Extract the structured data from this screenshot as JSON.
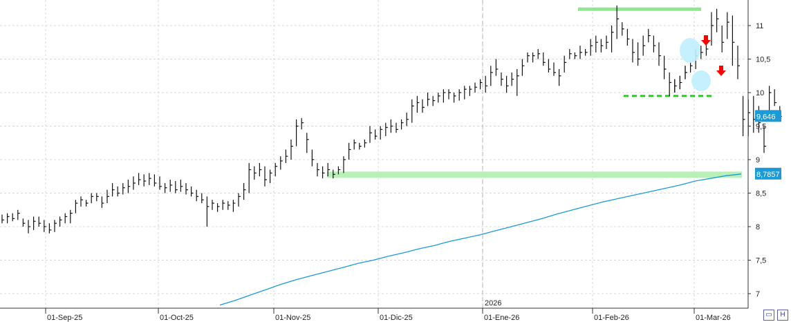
{
  "chart_data": {
    "type": "bar",
    "style": "ohlc",
    "x_ticks": [
      "01-Sep-25",
      "01-Oct-25",
      "01-Nov-25",
      "01-Dic-25",
      "01-Ene-26",
      "01-Feb-26",
      "01-Mar-26"
    ],
    "year_marker": "2026",
    "y_ticks": [
      "7",
      "7,5",
      "8",
      "8,5",
      "9",
      "9,5",
      "10",
      "10,5",
      "11"
    ],
    "ylim": [
      6.75,
      11.35
    ],
    "grid": true,
    "last_price_label": "9,646",
    "ma_label": "8,7857",
    "colors": {
      "price": "#111111",
      "moving_average": "#1a9ad6",
      "support_zone": "#b8f0b8",
      "resistance_line": "#8fe88f",
      "dashed_support": "#22cc22",
      "highlight_circle": "#bfefff",
      "signal_arrow": "#ff0000",
      "price_tag": "#1a9ad6"
    },
    "series": [
      {
        "values": [
          [
            8.18,
            8.05,
            8.1
          ],
          [
            8.2,
            8.05,
            8.15
          ],
          [
            8.2,
            8.08,
            8.12
          ],
          [
            8.25,
            8.1,
            8.2
          ],
          [
            8.12,
            8.0,
            8.05
          ],
          [
            8.1,
            7.9,
            8.0
          ],
          [
            8.15,
            7.95,
            8.08
          ],
          [
            8.15,
            8.0,
            8.05
          ],
          [
            8.1,
            7.92,
            8.0
          ],
          [
            8.05,
            7.9,
            7.95
          ],
          [
            8.1,
            7.92,
            8.05
          ],
          [
            8.15,
            8.0,
            8.1
          ],
          [
            8.2,
            8.05,
            8.15
          ],
          [
            8.25,
            8.05,
            8.2
          ],
          [
            8.4,
            8.2,
            8.35
          ],
          [
            8.45,
            8.3,
            8.4
          ],
          [
            8.4,
            8.3,
            8.35
          ],
          [
            8.5,
            8.35,
            8.45
          ],
          [
            8.5,
            8.38,
            8.45
          ],
          [
            8.45,
            8.28,
            8.35
          ],
          [
            8.55,
            8.35,
            8.45
          ],
          [
            8.65,
            8.45,
            8.55
          ],
          [
            8.6,
            8.45,
            8.5
          ],
          [
            8.65,
            8.48,
            8.58
          ],
          [
            8.7,
            8.5,
            8.6
          ],
          [
            8.75,
            8.55,
            8.65
          ],
          [
            8.8,
            8.62,
            8.7
          ],
          [
            8.78,
            8.6,
            8.68
          ],
          [
            8.8,
            8.62,
            8.72
          ],
          [
            8.78,
            8.6,
            8.65
          ],
          [
            8.75,
            8.55,
            8.6
          ],
          [
            8.65,
            8.5,
            8.58
          ],
          [
            8.7,
            8.52,
            8.62
          ],
          [
            8.68,
            8.5,
            8.55
          ],
          [
            8.7,
            8.52,
            8.6
          ],
          [
            8.65,
            8.48,
            8.55
          ],
          [
            8.6,
            8.45,
            8.5
          ],
          [
            8.55,
            8.38,
            8.45
          ],
          [
            8.5,
            8.35,
            8.4
          ],
          [
            8.45,
            8.0,
            8.3
          ],
          [
            8.4,
            8.25,
            8.35
          ],
          [
            8.35,
            8.22,
            8.3
          ],
          [
            8.4,
            8.25,
            8.35
          ],
          [
            8.38,
            8.25,
            8.32
          ],
          [
            8.4,
            8.22,
            8.35
          ],
          [
            8.5,
            8.3,
            8.45
          ],
          [
            8.65,
            8.4,
            8.55
          ],
          [
            8.95,
            8.5,
            8.85
          ],
          [
            8.9,
            8.7,
            8.8
          ],
          [
            8.95,
            8.75,
            8.85
          ],
          [
            8.9,
            8.6,
            8.7
          ],
          [
            8.85,
            8.65,
            8.8
          ],
          [
            8.95,
            8.75,
            8.9
          ],
          [
            9.05,
            8.85,
            8.98
          ],
          [
            9.15,
            8.95,
            9.05
          ],
          [
            9.3,
            9.0,
            9.2
          ],
          [
            9.6,
            9.2,
            9.5
          ],
          [
            9.62,
            9.45,
            9.55
          ],
          [
            9.4,
            9.1,
            9.3
          ],
          [
            9.15,
            8.9,
            9.0
          ],
          [
            8.95,
            8.75,
            8.85
          ],
          [
            8.9,
            8.72,
            8.8
          ],
          [
            8.95,
            8.75,
            8.85
          ],
          [
            8.85,
            8.72,
            8.78
          ],
          [
            8.9,
            8.78,
            8.85
          ],
          [
            9.05,
            8.8,
            9.0
          ],
          [
            9.25,
            9.0,
            9.15
          ],
          [
            9.3,
            9.15,
            9.25
          ],
          [
            9.25,
            9.15,
            9.2
          ],
          [
            9.3,
            9.18,
            9.25
          ],
          [
            9.5,
            9.25,
            9.4
          ],
          [
            9.45,
            9.3,
            9.35
          ],
          [
            9.5,
            9.3,
            9.45
          ],
          [
            9.55,
            9.35,
            9.48
          ],
          [
            9.6,
            9.4,
            9.5
          ],
          [
            9.55,
            9.4,
            9.45
          ],
          [
            9.6,
            9.45,
            9.55
          ],
          [
            9.7,
            9.5,
            9.6
          ],
          [
            9.9,
            9.55,
            9.8
          ],
          [
            9.95,
            9.7,
            9.85
          ],
          [
            9.9,
            9.7,
            9.78
          ],
          [
            10.0,
            9.8,
            9.9
          ],
          [
            9.95,
            9.8,
            9.88
          ],
          [
            10.0,
            9.85,
            9.95
          ],
          [
            10.05,
            9.85,
            10.0
          ],
          [
            10.05,
            9.9,
            10.0
          ],
          [
            10.0,
            9.85,
            9.95
          ],
          [
            10.05,
            9.88,
            10.0
          ],
          [
            10.1,
            9.9,
            10.05
          ],
          [
            10.1,
            9.95,
            10.05
          ],
          [
            10.15,
            10.0,
            10.08
          ],
          [
            10.2,
            10.05,
            10.15
          ],
          [
            10.25,
            10.0,
            10.1
          ],
          [
            10.4,
            10.1,
            10.3
          ],
          [
            10.5,
            10.25,
            10.35
          ],
          [
            10.3,
            10.1,
            10.2
          ],
          [
            10.25,
            10.0,
            10.1
          ],
          [
            10.3,
            10.1,
            10.2
          ],
          [
            10.35,
            9.95,
            10.25
          ],
          [
            10.5,
            10.25,
            10.4
          ],
          [
            10.6,
            10.45,
            10.55
          ],
          [
            10.6,
            10.45,
            10.55
          ],
          [
            10.65,
            10.5,
            10.58
          ],
          [
            10.6,
            10.4,
            10.45
          ],
          [
            10.5,
            10.3,
            10.35
          ],
          [
            10.45,
            10.25,
            10.3
          ],
          [
            10.35,
            10.1,
            10.25
          ],
          [
            10.55,
            10.3,
            10.45
          ],
          [
            10.65,
            10.5,
            10.58
          ],
          [
            10.6,
            10.5,
            10.55
          ],
          [
            10.7,
            10.5,
            10.6
          ],
          [
            10.65,
            10.55,
            10.6
          ],
          [
            10.8,
            10.55,
            10.7
          ],
          [
            10.85,
            10.6,
            10.75
          ],
          [
            10.8,
            10.6,
            10.7
          ],
          [
            10.85,
            10.65,
            10.75
          ],
          [
            11.0,
            10.6,
            10.9
          ],
          [
            11.3,
            10.8,
            11.1
          ],
          [
            11.05,
            10.85,
            10.95
          ],
          [
            10.95,
            10.7,
            10.8
          ],
          [
            10.8,
            10.45,
            10.6
          ],
          [
            10.75,
            10.4,
            10.5
          ],
          [
            10.85,
            10.55,
            10.7
          ],
          [
            10.95,
            10.75,
            10.85
          ],
          [
            10.85,
            10.6,
            10.7
          ],
          [
            10.75,
            10.4,
            10.55
          ],
          [
            10.55,
            10.2,
            10.35
          ],
          [
            10.3,
            9.95,
            10.15
          ],
          [
            10.2,
            10.0,
            10.1
          ],
          [
            10.25,
            10.05,
            10.15
          ],
          [
            10.4,
            10.2,
            10.3
          ],
          [
            10.45,
            10.3,
            10.4
          ],
          [
            10.65,
            10.35,
            10.55
          ],
          [
            10.7,
            10.5,
            10.6
          ],
          [
            10.75,
            10.55,
            10.65
          ],
          [
            11.2,
            10.7,
            11.0
          ],
          [
            11.25,
            10.9,
            11.1
          ],
          [
            11.0,
            10.6,
            10.75
          ],
          [
            11.2,
            10.8,
            11.05
          ],
          [
            11.15,
            10.4,
            10.75
          ],
          [
            10.7,
            10.2,
            10.4
          ],
          [
            9.95,
            9.35,
            9.6
          ],
          [
            9.9,
            9.35,
            9.7
          ],
          [
            9.95,
            9.4,
            9.6
          ],
          [
            9.8,
            9.4,
            9.55
          ],
          [
            9.5,
            9.1,
            9.2
          ],
          [
            10.1,
            9.7,
            10.0
          ],
          [
            10.05,
            9.8,
            9.85
          ],
          [
            9.8,
            9.62,
            9.646
          ]
        ]
      },
      {
        "name": "moving_average",
        "values": [
          6.83,
          6.9,
          6.98,
          7.06,
          7.14,
          7.21,
          7.27,
          7.33,
          7.39,
          7.45,
          7.5,
          7.56,
          7.61,
          7.67,
          7.72,
          7.78,
          7.83,
          7.88,
          7.94,
          8.0,
          8.06,
          8.12,
          8.19,
          8.25,
          8.31,
          8.37,
          8.42,
          8.47,
          8.52,
          8.57,
          8.62,
          8.68,
          8.72,
          8.76,
          8.7857
        ]
      }
    ],
    "annotations": {
      "resistance_level": 11.25,
      "support_level": 9.95,
      "support_zone_level": 8.78
    }
  }
}
